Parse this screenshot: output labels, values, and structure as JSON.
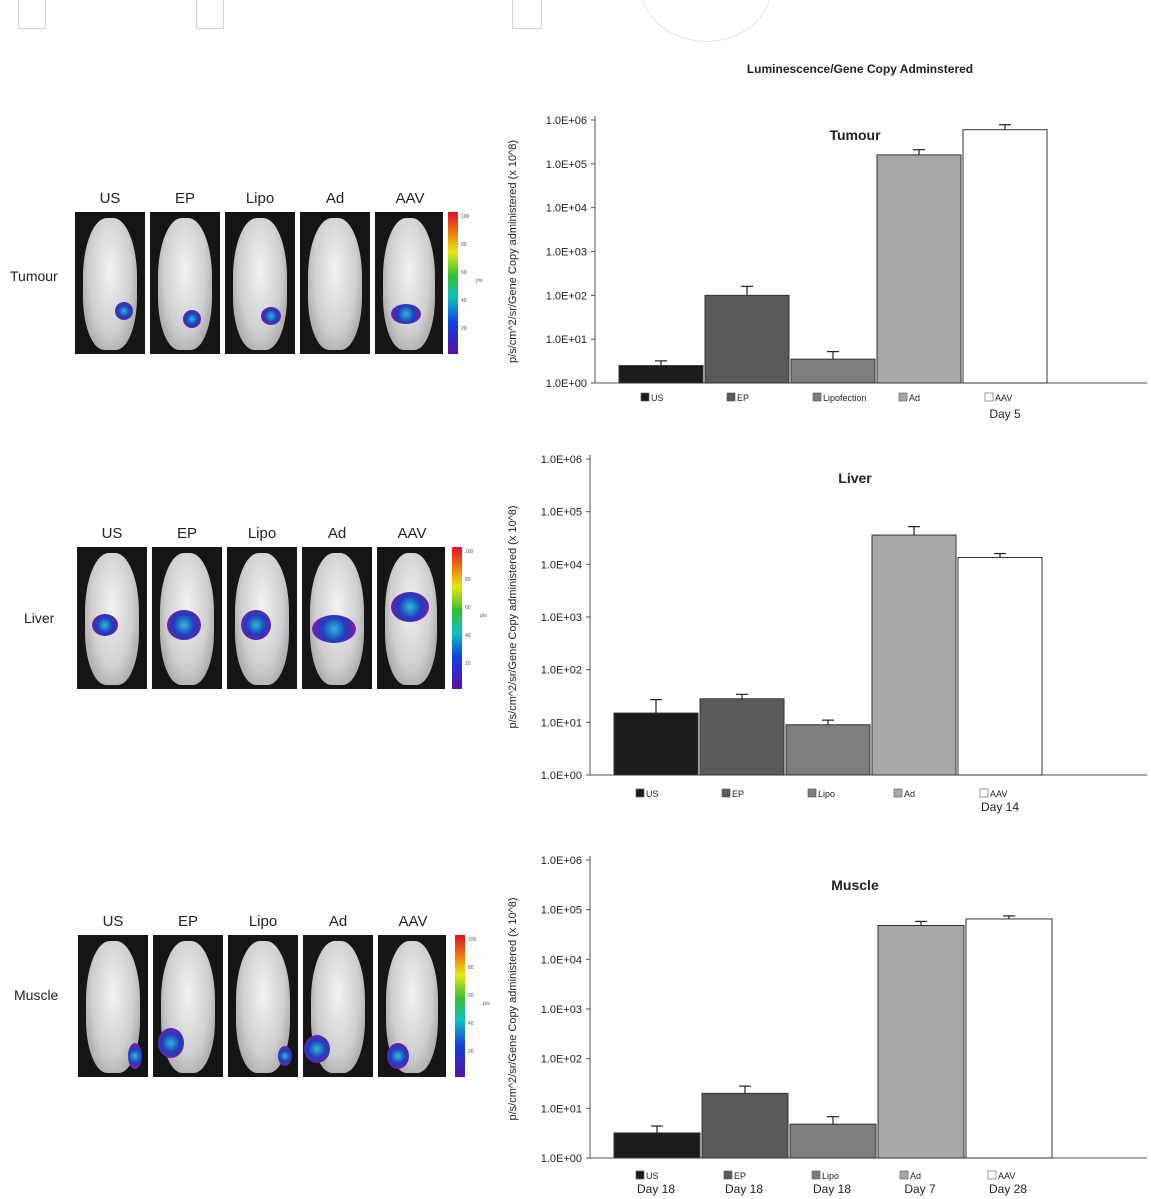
{
  "main_title": "Luminescence/Gene Copy Adminstered",
  "colorbar_ticks": [
    "100",
    "80",
    "60",
    "40",
    "20"
  ],
  "colorbar_unit": "p/s",
  "panels": [
    {
      "organ": "Tumour",
      "columns": [
        "US",
        "EP",
        "Lipo",
        "Ad",
        "AAV"
      ]
    },
    {
      "organ": "Liver",
      "columns": [
        "US",
        "EP",
        "Lipo",
        "Ad",
        "AAV"
      ]
    },
    {
      "organ": "Muscle",
      "columns": [
        "US",
        "EP",
        "Lipo",
        "Ad",
        "AAV"
      ]
    }
  ],
  "colors": {
    "US": "#1c1c1c",
    "EP": "#5a5a5a",
    "Lipo": "#7d7d7d",
    "Ad": "#a8a8a8",
    "AAV": "#ffffff"
  },
  "chart_data": [
    {
      "type": "bar",
      "title": "Tumour",
      "ylabel": "p/s/cm^2/sr/Gene Copy administered (x 10^8)",
      "yscale": "log",
      "ylim": [
        1,
        1000000
      ],
      "yticks": [
        "1.0E+00",
        "1.0E+01",
        "1.0E+02",
        "1.0E+03",
        "1.0E+04",
        "1.0E+05",
        "1.0E+06"
      ],
      "categories": [
        "US",
        "EP",
        "Lipofection",
        "Ad",
        "AAV"
      ],
      "values": [
        2.5,
        100,
        3.5,
        160000,
        600000
      ],
      "errors": [
        3.2,
        160,
        5.2,
        210000,
        780000
      ],
      "day_labels": [
        "",
        "",
        "",
        "",
        "Day 5"
      ]
    },
    {
      "type": "bar",
      "title": "Liver",
      "ylabel": "p/s/cm^2/sr/Gene Copy administered (x 10^8)",
      "yscale": "log",
      "ylim": [
        1,
        1000000
      ],
      "yticks": [
        "1.0E+00",
        "1.0E+01",
        "1.0E+02",
        "1.0E+03",
        "1.0E+04",
        "1.0E+05",
        "1.0E+06"
      ],
      "categories": [
        "US",
        "EP",
        "Lipo",
        "Ad",
        "AAV"
      ],
      "values": [
        15,
        28,
        9,
        36000,
        13500
      ],
      "errors": [
        27,
        34,
        11,
        52000,
        16000
      ],
      "day_labels": [
        "",
        "",
        "",
        "",
        "Day 14"
      ]
    },
    {
      "type": "bar",
      "title": "Muscle",
      "ylabel": "p/s/cm^2/sr/Gene Copy administered (x 10^8)",
      "yscale": "log",
      "ylim": [
        1,
        1000000
      ],
      "yticks": [
        "1.0E+00",
        "1.0E+01",
        "1.0E+02",
        "1.0E+03",
        "1.0E+04",
        "1.0E+05",
        "1.0E+06"
      ],
      "categories": [
        "US",
        "EP",
        "Lipo",
        "Ad",
        "AAV"
      ],
      "values": [
        3.2,
        20,
        4.8,
        48000,
        65000
      ],
      "errors": [
        4.4,
        28,
        6.8,
        58000,
        75000
      ],
      "day_labels": [
        "Day 18",
        "Day 18",
        "Day 18",
        "Day 7",
        "Day 28"
      ]
    }
  ]
}
